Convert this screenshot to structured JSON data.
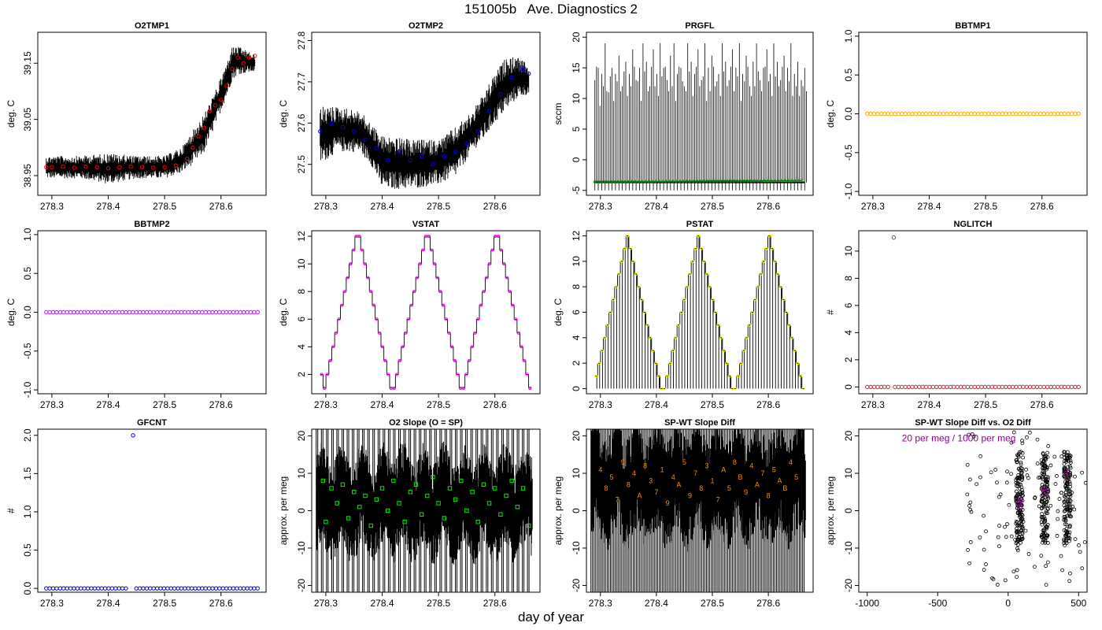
{
  "page": {
    "title": "151005b   Ave. Diagnostics 2",
    "xlabel": "day of year"
  },
  "colors": {
    "raw": "#000000",
    "o2tmp1": "#ff0000",
    "o2tmp2": "#0000ff",
    "prgfl": "#008000",
    "bbtmp1": "#ffa500",
    "bbtmp2": "#a020f0",
    "vstat": "#ff00ff",
    "pstat": "#ffff00",
    "nglitch": "#cd2626",
    "gfcnt": "#0000cd",
    "o2slope": "#00ee00",
    "spwt": "#ff8c00",
    "scatter_mean": "#8b008b"
  },
  "chart_data": [
    {
      "id": "o2tmp1",
      "type": "line",
      "title": "O2TMP1",
      "ylabel": "deg. C",
      "xlim": [
        278.275,
        278.68
      ],
      "ylim": [
        38.915,
        39.205
      ],
      "xticks": [
        "278.3",
        "278.4",
        "278.5",
        "278.6"
      ],
      "yticks": [
        "38.95",
        "39.05",
        "39.15"
      ],
      "series": [
        {
          "kind": "raw_band",
          "x": [
            278.29,
            278.3,
            278.35,
            278.4,
            278.45,
            278.5,
            278.53,
            278.55,
            278.57,
            278.59,
            278.61,
            278.62,
            278.63,
            278.66
          ],
          "lo": [
            38.945,
            38.945,
            38.945,
            38.935,
            38.945,
            38.945,
            38.955,
            38.97,
            38.99,
            39.04,
            39.09,
            39.12,
            39.13,
            39.135
          ],
          "hi": [
            38.985,
            38.985,
            38.985,
            38.99,
            38.985,
            38.985,
            39.0,
            39.03,
            39.06,
            39.1,
            39.15,
            39.18,
            39.18,
            39.165
          ]
        },
        {
          "kind": "points",
          "color": "o2tmp1",
          "x": [
            278.29,
            278.3,
            278.32,
            278.34,
            278.36,
            278.38,
            278.4,
            278.42,
            278.44,
            278.46,
            278.48,
            278.5,
            278.52,
            278.54,
            278.55,
            278.56,
            278.57,
            278.58,
            278.59,
            278.6,
            278.61,
            278.62,
            278.63,
            278.64,
            278.65,
            278.66
          ],
          "y": [
            38.965,
            38.965,
            38.966,
            38.964,
            38.966,
            38.965,
            38.963,
            38.965,
            38.966,
            38.965,
            38.964,
            38.965,
            38.968,
            38.98,
            39.0,
            39.02,
            39.035,
            39.065,
            39.075,
            39.085,
            39.11,
            39.14,
            39.16,
            39.15,
            39.16,
            39.163
          ]
        }
      ]
    },
    {
      "id": "o2tmp2",
      "type": "line",
      "title": "O2TMP2",
      "ylabel": "deg. C",
      "xlim": [
        278.275,
        278.68
      ],
      "ylim": [
        27.425,
        27.82
      ],
      "xticks": [
        "278.3",
        "278.4",
        "278.5",
        "278.6"
      ],
      "yticks": [
        "27.5",
        "27.6",
        "27.7",
        "27.8"
      ],
      "series": [
        {
          "kind": "raw_band",
          "x": [
            278.29,
            278.32,
            278.36,
            278.38,
            278.4,
            278.45,
            278.5,
            278.53,
            278.56,
            278.58,
            278.6,
            278.62,
            278.64,
            278.66
          ],
          "lo": [
            27.5,
            27.53,
            27.53,
            27.5,
            27.44,
            27.44,
            27.45,
            27.47,
            27.53,
            27.56,
            27.6,
            27.63,
            27.66,
            27.67
          ],
          "hi": [
            27.64,
            27.64,
            27.63,
            27.6,
            27.57,
            27.56,
            27.56,
            27.59,
            27.63,
            27.67,
            27.72,
            27.76,
            27.76,
            27.74
          ]
        },
        {
          "kind": "points",
          "color": "o2tmp2",
          "x": [
            278.29,
            278.31,
            278.33,
            278.35,
            278.37,
            278.39,
            278.41,
            278.43,
            278.45,
            278.47,
            278.49,
            278.51,
            278.53,
            278.55,
            278.57,
            278.59,
            278.61,
            278.63,
            278.65,
            278.66
          ],
          "y": [
            27.58,
            27.6,
            27.59,
            27.58,
            27.56,
            27.54,
            27.51,
            27.53,
            27.51,
            27.52,
            27.5,
            27.52,
            27.53,
            27.55,
            27.58,
            27.63,
            27.67,
            27.71,
            27.73,
            27.72
          ]
        }
      ]
    },
    {
      "id": "prgfl",
      "type": "line",
      "title": "PRGFL",
      "ylabel": "sccm",
      "xlim": [
        278.275,
        278.68
      ],
      "ylim": [
        -5.8,
        20.8
      ],
      "xticks": [
        "278.3",
        "278.4",
        "278.5",
        "278.6"
      ],
      "yticks": [
        "-5",
        "0",
        "5",
        "10",
        "15",
        "20"
      ],
      "series": [
        {
          "kind": "spikes",
          "base": -3.7,
          "x_start": 278.29,
          "x_end": 278.665,
          "count": 62,
          "peaks": [
            13,
            15,
            14,
            19,
            11,
            15,
            14,
            17,
            12,
            16,
            14,
            18,
            13,
            15,
            19,
            16,
            12,
            18,
            14,
            19,
            15,
            13,
            17,
            19,
            14,
            15,
            12,
            19,
            16,
            14,
            18,
            13,
            19,
            15,
            17,
            12,
            14,
            19,
            16,
            13,
            18,
            15,
            19,
            14,
            17,
            12,
            16,
            19,
            13,
            15,
            18,
            14,
            19,
            16,
            13,
            17,
            15,
            19,
            14,
            16,
            13,
            15
          ],
          "lo": -5
        },
        {
          "kind": "line",
          "color": "prgfl",
          "x": [
            278.29,
            278.66
          ],
          "y": [
            -3.6,
            -3.4
          ]
        }
      ]
    },
    {
      "id": "bbtmp1",
      "type": "scatter",
      "title": "BBTMP1",
      "ylabel": "deg. C",
      "xlim": [
        278.275,
        278.68
      ],
      "ylim": [
        -1.05,
        1.05
      ],
      "xticks": [
        "278.3",
        "278.4",
        "278.5",
        "278.6"
      ],
      "yticks": [
        "-1.0",
        "-0.5",
        "0.0",
        "0.5",
        "1.0"
      ],
      "series": [
        {
          "kind": "points_even",
          "color": "bbtmp1",
          "x_start": 278.29,
          "x_end": 278.665,
          "count": 62,
          "y": 0.0
        }
      ]
    },
    {
      "id": "bbtmp2",
      "type": "scatter",
      "title": "BBTMP2",
      "ylabel": "deg. C",
      "xlim": [
        278.275,
        278.68
      ],
      "ylim": [
        -1.05,
        1.05
      ],
      "xticks": [
        "278.3",
        "278.4",
        "278.5",
        "278.6"
      ],
      "yticks": [
        "-1.0",
        "-0.5",
        "0.0",
        "0.5",
        "1.0"
      ],
      "series": [
        {
          "kind": "points_even",
          "color": "bbtmp2",
          "x_start": 278.29,
          "x_end": 278.665,
          "count": 62,
          "y": 0.0
        }
      ]
    },
    {
      "id": "vstat",
      "type": "line",
      "title": "VSTAT",
      "ylabel": "deg. C",
      "xlim": [
        278.275,
        278.68
      ],
      "ylim": [
        0.6,
        12.4
      ],
      "xticks": [
        "278.3",
        "278.4",
        "278.5",
        "278.6"
      ],
      "yticks": [
        "2",
        "4",
        "6",
        "8",
        "10",
        "12"
      ],
      "series": [
        {
          "kind": "staircase",
          "color": "vstat",
          "x_start": 278.29,
          "x_end": 278.665,
          "y": [
            2,
            1,
            2,
            3,
            4,
            5,
            6,
            7,
            8,
            9,
            10,
            11,
            12,
            12,
            11,
            10,
            9,
            8,
            7,
            6,
            5,
            4,
            3,
            2,
            1,
            1,
            2,
            3,
            4,
            5,
            6,
            7,
            8,
            9,
            10,
            11,
            12,
            12,
            11,
            10,
            9,
            8,
            7,
            6,
            5,
            4,
            3,
            2,
            1,
            1,
            2,
            3,
            4,
            5,
            6,
            7,
            8,
            9,
            10,
            11,
            12,
            12,
            11,
            10,
            9,
            8,
            7,
            6,
            5,
            4,
            3,
            2,
            1
          ]
        }
      ]
    },
    {
      "id": "pstat",
      "type": "line",
      "title": "PSTAT",
      "ylabel": "deg. C",
      "xlim": [
        278.275,
        278.68
      ],
      "ylim": [
        -0.4,
        12.4
      ],
      "xticks": [
        "278.3",
        "278.4",
        "278.5",
        "278.6"
      ],
      "yticks": [
        "0",
        "2",
        "4",
        "6",
        "8",
        "10",
        "12"
      ],
      "series": [
        {
          "kind": "staircase_spikes",
          "color": "pstat",
          "x_start": 278.29,
          "x_end": 278.665,
          "y": [
            1,
            2,
            3,
            4,
            5,
            6,
            7,
            8,
            9,
            10,
            11,
            12,
            11,
            10,
            9,
            8,
            7,
            6,
            5,
            4,
            3,
            2,
            1,
            0,
            0,
            1,
            2,
            3,
            4,
            5,
            6,
            7,
            8,
            9,
            10,
            11,
            12,
            11,
            10,
            9,
            8,
            7,
            6,
            5,
            4,
            3,
            2,
            1,
            0,
            0,
            1,
            2,
            3,
            4,
            5,
            6,
            7,
            8,
            9,
            10,
            11,
            12,
            11,
            10,
            9,
            8,
            7,
            6,
            5,
            4,
            3,
            2,
            1,
            0
          ]
        }
      ]
    },
    {
      "id": "nglitch",
      "type": "scatter",
      "title": "NGLITCH",
      "ylabel": "#",
      "xlim": [
        278.275,
        278.68
      ],
      "ylim": [
        -0.5,
        11.5
      ],
      "xticks": [
        "278.3",
        "278.4",
        "278.5",
        "278.6"
      ],
      "yticks": [
        "0",
        "2",
        "4",
        "6",
        "8",
        "10"
      ],
      "series": [
        {
          "kind": "points_even",
          "color": "nglitch",
          "x_start": 278.29,
          "x_end": 278.665,
          "count": 62,
          "y": 0.0,
          "gap_after": 278.335
        },
        {
          "kind": "points",
          "color": "nglitch",
          "x": [
            278.337
          ],
          "y": [
            11
          ]
        }
      ]
    },
    {
      "id": "gfcnt",
      "type": "scatter",
      "title": "GFCNT",
      "ylabel": "#",
      "xlim": [
        278.275,
        278.68
      ],
      "ylim": [
        -0.05,
        2.08
      ],
      "xticks": [
        "278.3",
        "278.4",
        "278.5",
        "278.6"
      ],
      "yticks": [
        "0.0",
        "0.5",
        "1.0",
        "1.5",
        "2.0"
      ],
      "series": [
        {
          "kind": "points_even",
          "color": "gfcnt",
          "x_start": 278.29,
          "x_end": 278.665,
          "count": 62,
          "y": 0.0,
          "gap_after": 278.44
        },
        {
          "kind": "points",
          "color": "gfcnt",
          "x": [
            278.444
          ],
          "y": [
            2.0
          ]
        }
      ]
    },
    {
      "id": "o2slope",
      "type": "line",
      "title": "O2 Slope (O = SP)",
      "ylabel": "approx. per meg",
      "xlim": [
        278.275,
        278.68
      ],
      "ylim": [
        -21.8,
        21.8
      ],
      "xticks": [
        "278.3",
        "278.4",
        "278.5",
        "278.6"
      ],
      "yticks": [
        "-20",
        "-10",
        "0",
        "10",
        "20"
      ],
      "series": [
        {
          "kind": "noise",
          "x_start": 278.283,
          "x_end": 278.667,
          "center": 2,
          "amp": 9,
          "full_every": 14
        },
        {
          "kind": "points",
          "color": "o2slope",
          "symbol": "square",
          "x": [
            278.295,
            278.3,
            278.31,
            278.32,
            278.33,
            278.34,
            278.35,
            278.36,
            278.37,
            278.38,
            278.39,
            278.4,
            278.41,
            278.42,
            278.43,
            278.44,
            278.45,
            278.46,
            278.47,
            278.48,
            278.49,
            278.5,
            278.51,
            278.52,
            278.53,
            278.54,
            278.55,
            278.56,
            278.57,
            278.58,
            278.59,
            278.6,
            278.61,
            278.62,
            278.63,
            278.64,
            278.65,
            278.66
          ],
          "y": [
            8,
            -3,
            6,
            2,
            7,
            -2,
            5,
            1,
            4,
            -4,
            3,
            6,
            0,
            8,
            2,
            -3,
            5,
            7,
            -1,
            4,
            9,
            2,
            -2,
            6,
            3,
            8,
            0,
            5,
            -3,
            7,
            2,
            6,
            -1,
            4,
            8,
            1,
            6,
            -4
          ]
        }
      ]
    },
    {
      "id": "spwt",
      "type": "line",
      "title": "SP-WT Slope Diff",
      "ylabel": "approx. per meg",
      "xlim": [
        278.275,
        278.68
      ],
      "ylim": [
        -21.8,
        21.8
      ],
      "xticks": [
        "278.3",
        "278.4",
        "278.5",
        "278.6"
      ],
      "yticks": [
        "-20",
        "-10",
        "0",
        "10",
        "20"
      ],
      "series": [
        {
          "kind": "noise",
          "x_start": 278.283,
          "x_end": 278.667,
          "center": 7,
          "amp": 10,
          "full_every": 9
        },
        {
          "kind": "labels",
          "color": "spwt",
          "x": [
            278.3,
            278.31,
            278.32,
            278.33,
            278.34,
            278.35,
            278.36,
            278.37,
            278.38,
            278.39,
            278.4,
            278.41,
            278.42,
            278.43,
            278.44,
            278.45,
            278.46,
            278.47,
            278.48,
            278.49,
            278.5,
            278.51,
            278.52,
            278.53,
            278.54,
            278.55,
            278.56,
            278.57,
            278.58,
            278.59,
            278.6,
            278.61,
            278.62,
            278.63,
            278.64,
            278.65
          ],
          "y": [
            11,
            6,
            9,
            3,
            13,
            7,
            10,
            4,
            12,
            8,
            5,
            11,
            2,
            9,
            7,
            13,
            4,
            10,
            6,
            12,
            8,
            3,
            11,
            6,
            13,
            9,
            5,
            12,
            7,
            10,
            4,
            11,
            8,
            6,
            13,
            9
          ],
          "text": [
            "4",
            "8",
            "5",
            "7",
            "9",
            "8",
            "4",
            "A",
            "8",
            "3",
            "7",
            "1",
            "9",
            "4",
            "A",
            "5",
            "9",
            "7",
            "8",
            "3",
            "1",
            "7",
            "A",
            "5",
            "8",
            "B",
            "9",
            "4",
            "A",
            "7",
            "8",
            "5",
            "A",
            "B",
            "4",
            "5"
          ]
        }
      ]
    },
    {
      "id": "scatter_diff",
      "type": "scatter",
      "title": "SP-WT Slope Diff vs. O2 Diff",
      "ylabel": "approx. per meg",
      "xlim": [
        -1060,
        560
      ],
      "ylim": [
        -21.8,
        21.8
      ],
      "xticks": [
        "-1000",
        "-500",
        "0",
        "500"
      ],
      "yticks": [
        "-20",
        "-10",
        "0",
        "10",
        "20"
      ],
      "annotation": "20 per meg / 1000 per meg",
      "series": [
        {
          "kind": "clusters",
          "centers": [
            80,
            260,
            420
          ],
          "spread_x": 25,
          "y_lo": -14,
          "y_hi": 21
        },
        {
          "kind": "points",
          "color": "scatter_mean",
          "symbol": "square",
          "x": [
            75,
            85,
            250,
            270,
            410,
            430,
            90,
            260
          ],
          "y": [
            2,
            1,
            6,
            5,
            10,
            9,
            3,
            6
          ]
        }
      ]
    }
  ]
}
